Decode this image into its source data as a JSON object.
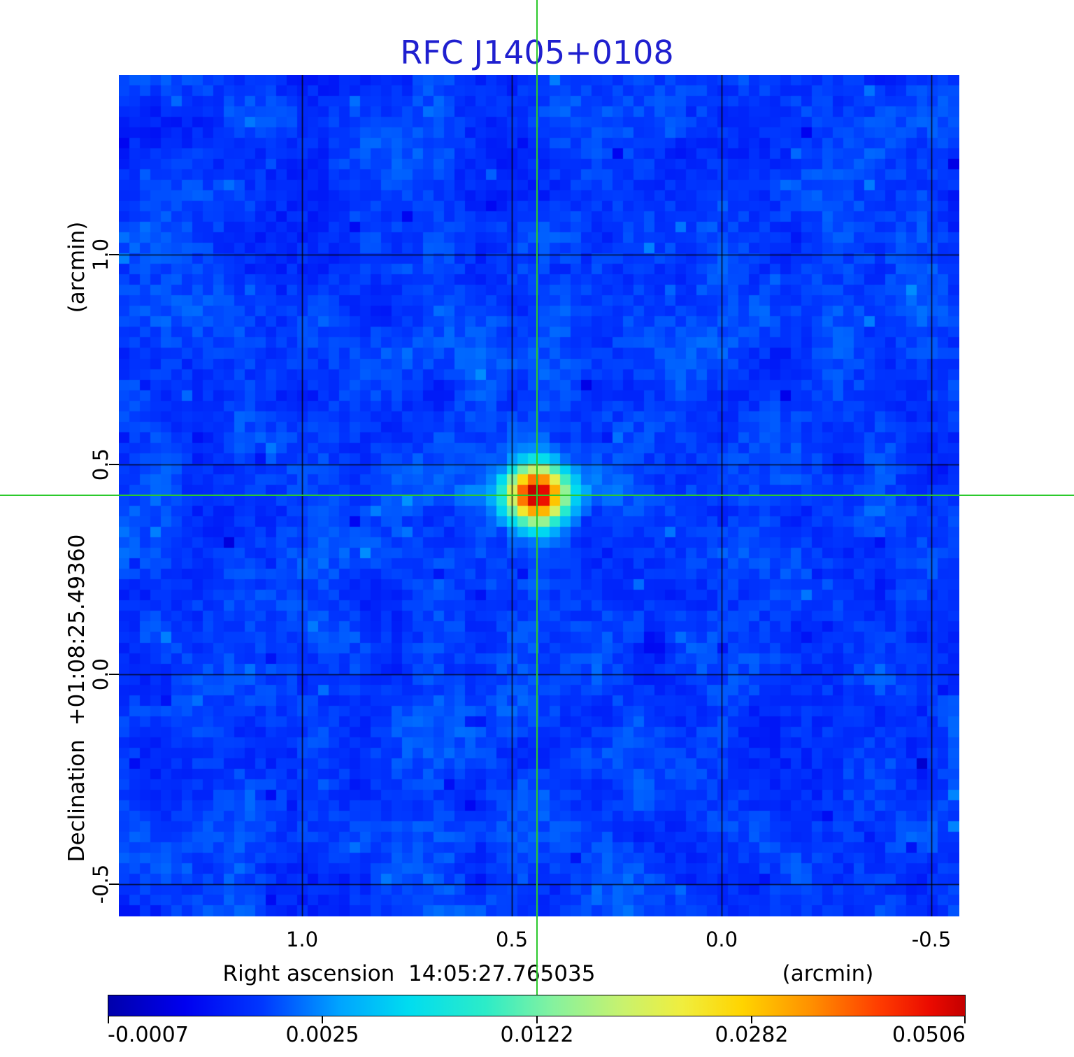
{
  "title": {
    "text": "RFC J1405+0108",
    "color": "#1f1fcf"
  },
  "y_axis": {
    "label": "Declination  +01:08:25.49360",
    "unit": "(arcmin)",
    "ticks": [
      "1.0",
      "0.5",
      "0.0",
      "-0.5"
    ]
  },
  "x_axis": {
    "label": "Right ascension  14:05:27.765035",
    "unit": "(arcmin)",
    "ticks": [
      "1.0",
      "0.5",
      "0.0",
      "-0.5"
    ]
  },
  "colorbar": {
    "tick_labels": [
      "-0.0007",
      "0.0025",
      "0.0122",
      "0.0282",
      "0.0506"
    ]
  },
  "crosshair_color": "#2cc92c",
  "chart_data": {
    "type": "heatmap",
    "title": "RFC J1405+0108",
    "xlabel": "Right ascension 14:05:27.765035 (arcmin)",
    "ylabel": "Declination +01:08:25.49360 (arcmin)",
    "x_tick_values_arcmin": [
      1.0,
      0.5,
      0.0,
      -0.5
    ],
    "y_tick_values_arcmin": [
      1.0,
      0.5,
      0.0,
      -0.5
    ],
    "x_range_arcmin": [
      1.437,
      -0.567
    ],
    "y_range_arcmin": [
      1.428,
      -0.577
    ],
    "grid": true,
    "gridline_color": "#000000",
    "color_scale": "sqrt",
    "vmin": -0.0007,
    "vmax": 0.0506,
    "colorbar_tick_values": [
      -0.0007,
      0.0025,
      0.0122,
      0.0282,
      0.0506
    ],
    "crosshair_arcmin": {
      "x": 0.44,
      "y": 0.428
    },
    "source": {
      "x_arcmin": 0.44,
      "y_arcmin": 0.428,
      "peak_value": 0.0506,
      "sigma_cells": 1.6,
      "description": "compact bright point source at crosshair intersection"
    },
    "features": [
      {
        "type": "dark-pixel",
        "x_arcmin": 0.158,
        "y_arcmin": 0.068,
        "value": -0.0007
      }
    ],
    "background": {
      "mean_value": 0.001,
      "spread": 0.0012
    },
    "cells": 80,
    "colormap_stops": [
      {
        "pos": 0.0,
        "color": "#0000ac"
      },
      {
        "pos": 0.09,
        "color": "#0000f0"
      },
      {
        "pos": 0.18,
        "color": "#0038ff"
      },
      {
        "pos": 0.27,
        "color": "#00a4ff"
      },
      {
        "pos": 0.35,
        "color": "#00dcf0"
      },
      {
        "pos": 0.44,
        "color": "#2cecc8"
      },
      {
        "pos": 0.52,
        "color": "#86f29e"
      },
      {
        "pos": 0.6,
        "color": "#c8f26e"
      },
      {
        "pos": 0.67,
        "color": "#f0ee3e"
      },
      {
        "pos": 0.74,
        "color": "#ffd400"
      },
      {
        "pos": 0.82,
        "color": "#ff9000"
      },
      {
        "pos": 0.9,
        "color": "#ff3c00"
      },
      {
        "pos": 0.96,
        "color": "#ea0a00"
      },
      {
        "pos": 1.0,
        "color": "#c40000"
      }
    ]
  }
}
